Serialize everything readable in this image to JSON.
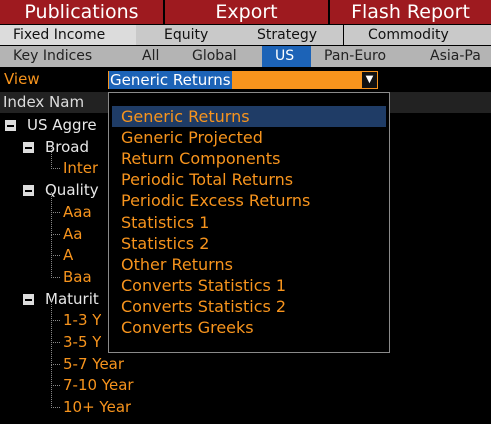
{
  "tabs": [
    "Publications",
    "Export",
    "Flash Report"
  ],
  "categories": [
    "Fixed Income",
    "Equity",
    "Strategy",
    "Commodity"
  ],
  "regions": [
    "Key Indices",
    "All",
    "Global",
    "US",
    "Pan-Euro",
    "Asia-Pa"
  ],
  "view": {
    "label": "View",
    "selected": "Generic Returns"
  },
  "column_header": "Index Nam",
  "tree": [
    {
      "label": "US Aggre",
      "children": [
        {
          "label": "Broad",
          "children": [
            {
              "label": "Inter"
            }
          ]
        },
        {
          "label": "Quality",
          "children": [
            {
              "label": "Aaa"
            },
            {
              "label": "Aa"
            },
            {
              "label": "A"
            },
            {
              "label": "Baa"
            }
          ]
        },
        {
          "label": "Maturit",
          "children": [
            {
              "label": "1-3 Y"
            },
            {
              "label": "3-5 Y"
            },
            {
              "label": "5-7 Year"
            },
            {
              "label": "7-10 Year"
            },
            {
              "label": "10+ Year"
            }
          ]
        }
      ]
    }
  ],
  "dropdown": {
    "options": [
      "Generic Returns",
      "Generic Projected",
      "Return Components",
      "Periodic Total Returns",
      "Periodic Excess Returns",
      "Statistics 1",
      "Statistics 2",
      "Other Returns",
      "Converts Statistics 1",
      "Converts Statistics 2",
      "Converts Greeks"
    ]
  }
}
